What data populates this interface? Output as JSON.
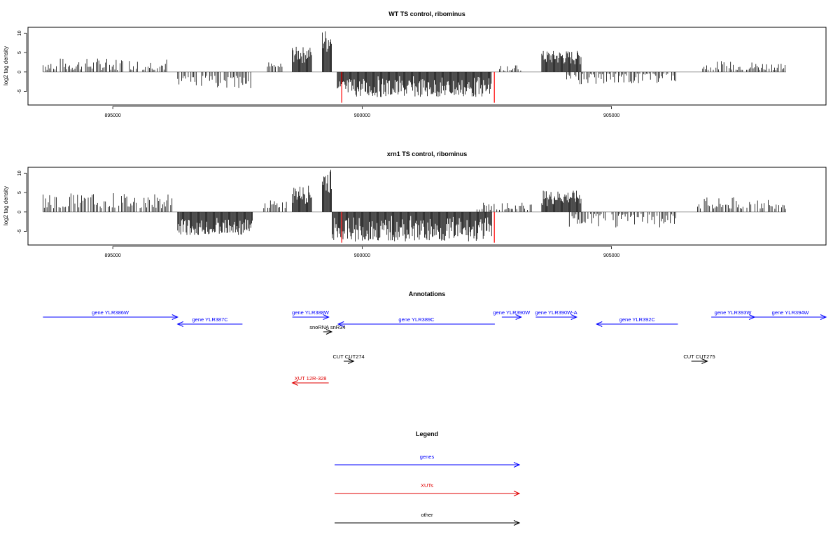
{
  "chart_data": [
    {
      "type": "bar",
      "title": "WT TS control, ribominus",
      "ylabel": "log2 tag density",
      "xlim": [
        893300,
        909300
      ],
      "ylim": [
        -8.5,
        11.5
      ],
      "x_ticks": [
        895000,
        900000,
        905000
      ],
      "x_tick_labels": [
        "895000",
        "900000",
        "905000"
      ],
      "y_ticks": [
        -5,
        0,
        5,
        10
      ],
      "y_tick_labels": [
        "-5",
        "0",
        "5",
        "10"
      ],
      "series": [
        {
          "strand": "plus",
          "segments": [
            {
              "from": 893600,
              "to": 896100,
              "lo": 0.5,
              "hi": 3.6
            },
            {
              "from": 898100,
              "to": 898400,
              "lo": 0.8,
              "hi": 2.8
            },
            {
              "from": 898600,
              "to": 899000,
              "lo": 2.0,
              "hi": 6.5
            },
            {
              "from": 899200,
              "to": 899400,
              "lo": 4.0,
              "hi": 11.0
            },
            {
              "from": 902700,
              "to": 903200,
              "lo": 0.3,
              "hi": 1.8
            },
            {
              "from": 903600,
              "to": 904400,
              "lo": 1.5,
              "hi": 5.5
            },
            {
              "from": 906800,
              "to": 908500,
              "lo": 0.5,
              "hi": 2.8
            }
          ]
        },
        {
          "strand": "minus",
          "segments": [
            {
              "from": 896300,
              "to": 897800,
              "lo": 1.0,
              "hi": 4.2
            },
            {
              "from": 899500,
              "to": 902600,
              "lo": 1.0,
              "hi": 6.5
            },
            {
              "from": 904100,
              "to": 906300,
              "lo": 0.4,
              "hi": 3.2
            }
          ]
        }
      ],
      "red_markers": [
        {
          "x": 899590,
          "y": -7.9
        },
        {
          "x": 902650,
          "y": -7.9
        }
      ]
    },
    {
      "type": "bar",
      "title": "xrn1 TS control, ribominus",
      "ylabel": "log2 tag density",
      "xlim": [
        893300,
        909300
      ],
      "ylim": [
        -8.5,
        11.5
      ],
      "x_ticks": [
        895000,
        900000,
        905000
      ],
      "x_tick_labels": [
        "895000",
        "900000",
        "905000"
      ],
      "y_ticks": [
        -5,
        0,
        5,
        10
      ],
      "y_tick_labels": [
        "-5",
        "0",
        "5",
        "10"
      ],
      "series": [
        {
          "strand": "plus",
          "segments": [
            {
              "from": 893600,
              "to": 896200,
              "lo": 1.0,
              "hi": 5.0
            },
            {
              "from": 898000,
              "to": 898500,
              "lo": 1.0,
              "hi": 3.0
            },
            {
              "from": 898600,
              "to": 899000,
              "lo": 2.0,
              "hi": 6.8
            },
            {
              "from": 899200,
              "to": 899400,
              "lo": 4.0,
              "hi": 11.0
            },
            {
              "from": 902300,
              "to": 903400,
              "lo": 0.5,
              "hi": 2.5
            },
            {
              "from": 903600,
              "to": 904400,
              "lo": 1.5,
              "hi": 5.5
            },
            {
              "from": 906700,
              "to": 908500,
              "lo": 0.8,
              "hi": 3.8
            }
          ]
        },
        {
          "strand": "minus",
          "segments": [
            {
              "from": 896300,
              "to": 897800,
              "lo": 1.5,
              "hi": 6.0
            },
            {
              "from": 899400,
              "to": 902600,
              "lo": 1.0,
              "hi": 7.6
            },
            {
              "from": 904100,
              "to": 906300,
              "lo": 0.5,
              "hi": 4.0
            }
          ]
        }
      ],
      "red_markers": [
        {
          "x": 899590,
          "y": -7.9
        },
        {
          "x": 902650,
          "y": -7.9
        }
      ]
    }
  ],
  "annotations": {
    "title": "Annotations",
    "features": [
      {
        "label": "gene YLR386W",
        "start": 893600,
        "end": 896300,
        "strand": "+",
        "row": 1,
        "color": "#0000ff"
      },
      {
        "label": "gene YLR387C",
        "start": 896300,
        "end": 897600,
        "strand": "-",
        "row": 2,
        "color": "#0000ff"
      },
      {
        "label": "gene YLR388W",
        "start": 898600,
        "end": 899330,
        "strand": "+",
        "row": 1,
        "color": "#0000ff"
      },
      {
        "label": "snoRNA snR34",
        "start": 899220,
        "end": 899390,
        "strand": "+",
        "row": 3,
        "color": "#000000"
      },
      {
        "label": "gene YLR389C",
        "start": 899520,
        "end": 902660,
        "strand": "-",
        "row": 2,
        "color": "#0000ff"
      },
      {
        "label": "gene YLR390W",
        "start": 902800,
        "end": 903190,
        "strand": "+",
        "row": 1,
        "color": "#0000ff"
      },
      {
        "label": "gene YLR390W-A",
        "start": 903480,
        "end": 904300,
        "strand": "+",
        "row": 1,
        "color": "#0000ff"
      },
      {
        "label": "gene YLR392C",
        "start": 904700,
        "end": 906330,
        "strand": "-",
        "row": 2,
        "color": "#0000ff"
      },
      {
        "label": "gene YLR393W",
        "start": 907000,
        "end": 907870,
        "strand": "+",
        "row": 1,
        "color": "#0000ff"
      },
      {
        "label": "gene YLR394W",
        "start": 907870,
        "end": 909300,
        "strand": "+",
        "row": 1,
        "color": "#0000ff"
      },
      {
        "label": "CUT CUT274",
        "start": 899630,
        "end": 899830,
        "strand": "+",
        "row": 4,
        "color": "#000000"
      },
      {
        "label": "CUT CUT275",
        "start": 906600,
        "end": 906920,
        "strand": "+",
        "row": 4,
        "color": "#000000"
      },
      {
        "label": "XUT 12R-328",
        "start": 898600,
        "end": 899330,
        "strand": "-",
        "row": 5,
        "color": "#e00000"
      }
    ]
  },
  "legend": {
    "title": "Legend",
    "items": [
      {
        "label": "genes",
        "color": "#0000ff"
      },
      {
        "label": "XUTs",
        "color": "#e00000"
      },
      {
        "label": "other",
        "color": "#000000"
      }
    ]
  }
}
